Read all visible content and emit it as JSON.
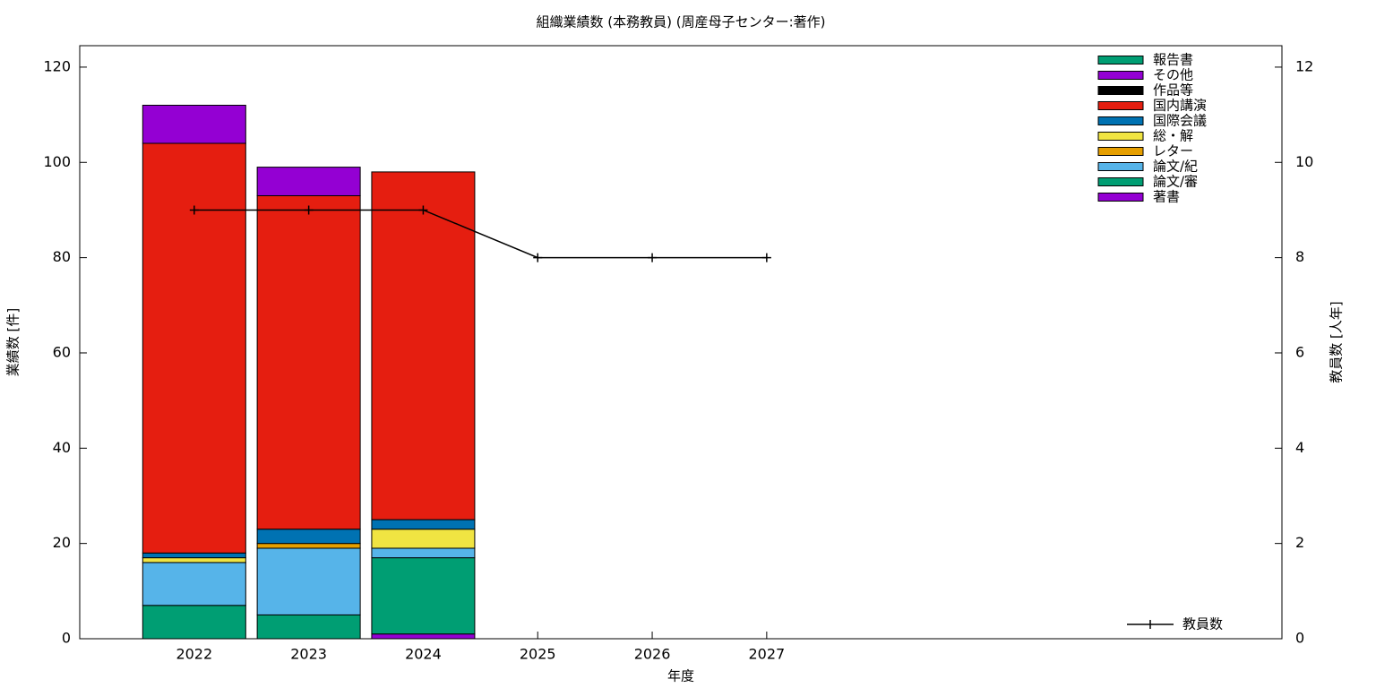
{
  "chart_data": {
    "type": "bar",
    "stacked": true,
    "title": "組織業績数 (本務教員) (周産母子センター:著作)",
    "xlabel": "年度",
    "ylabel": "業績数 [件]",
    "y2label": "教員数 [人年]",
    "x": [
      2022,
      2023,
      2024,
      2025,
      2026,
      2027
    ],
    "xlim": [
      2021,
      2031.5
    ],
    "xticks": [
      2022,
      2023,
      2024,
      2025,
      2026,
      2027
    ],
    "ylim": [
      0,
      124.5
    ],
    "yticks": [
      0,
      20,
      40,
      60,
      80,
      100,
      120
    ],
    "y2lim": [
      0,
      12.45
    ],
    "y2ticks": [
      0,
      2,
      4,
      6,
      8,
      10,
      12
    ],
    "legend": "upper right",
    "series": [
      {
        "name": "著書",
        "color": "#9400d3",
        "values": [
          0,
          0,
          1,
          null,
          null,
          null
        ]
      },
      {
        "name": "論文/審",
        "color": "#009e73",
        "values": [
          7,
          5,
          16,
          null,
          null,
          null
        ]
      },
      {
        "name": "論文/紀",
        "color": "#56b4e9",
        "values": [
          9,
          14,
          2,
          null,
          null,
          null
        ]
      },
      {
        "name": "レター",
        "color": "#e69f00",
        "values": [
          0,
          1,
          0,
          null,
          null,
          null
        ]
      },
      {
        "name": "総・解",
        "color": "#f0e442",
        "values": [
          1,
          0,
          4,
          null,
          null,
          null
        ]
      },
      {
        "name": "国際会議",
        "color": "#0072b2",
        "values": [
          1,
          3,
          2,
          null,
          null,
          null
        ]
      },
      {
        "name": "国内講演",
        "color": "#e51e10",
        "values": [
          86,
          70,
          73,
          null,
          null,
          null
        ]
      },
      {
        "name": "作品等",
        "color": "#000000",
        "values": [
          0,
          0,
          0,
          null,
          null,
          null
        ]
      },
      {
        "name": "その他",
        "color": "#9400d3",
        "values": [
          8,
          6,
          0,
          null,
          null,
          null
        ]
      },
      {
        "name": "報告書",
        "color": "#009e73",
        "values": [
          0,
          0,
          0,
          null,
          null,
          null
        ]
      },
      {
        "name": "教員数",
        "color": "#000000",
        "type": "line",
        "axis": "y2",
        "values": [
          9,
          9,
          9,
          8,
          8,
          8
        ]
      }
    ]
  }
}
